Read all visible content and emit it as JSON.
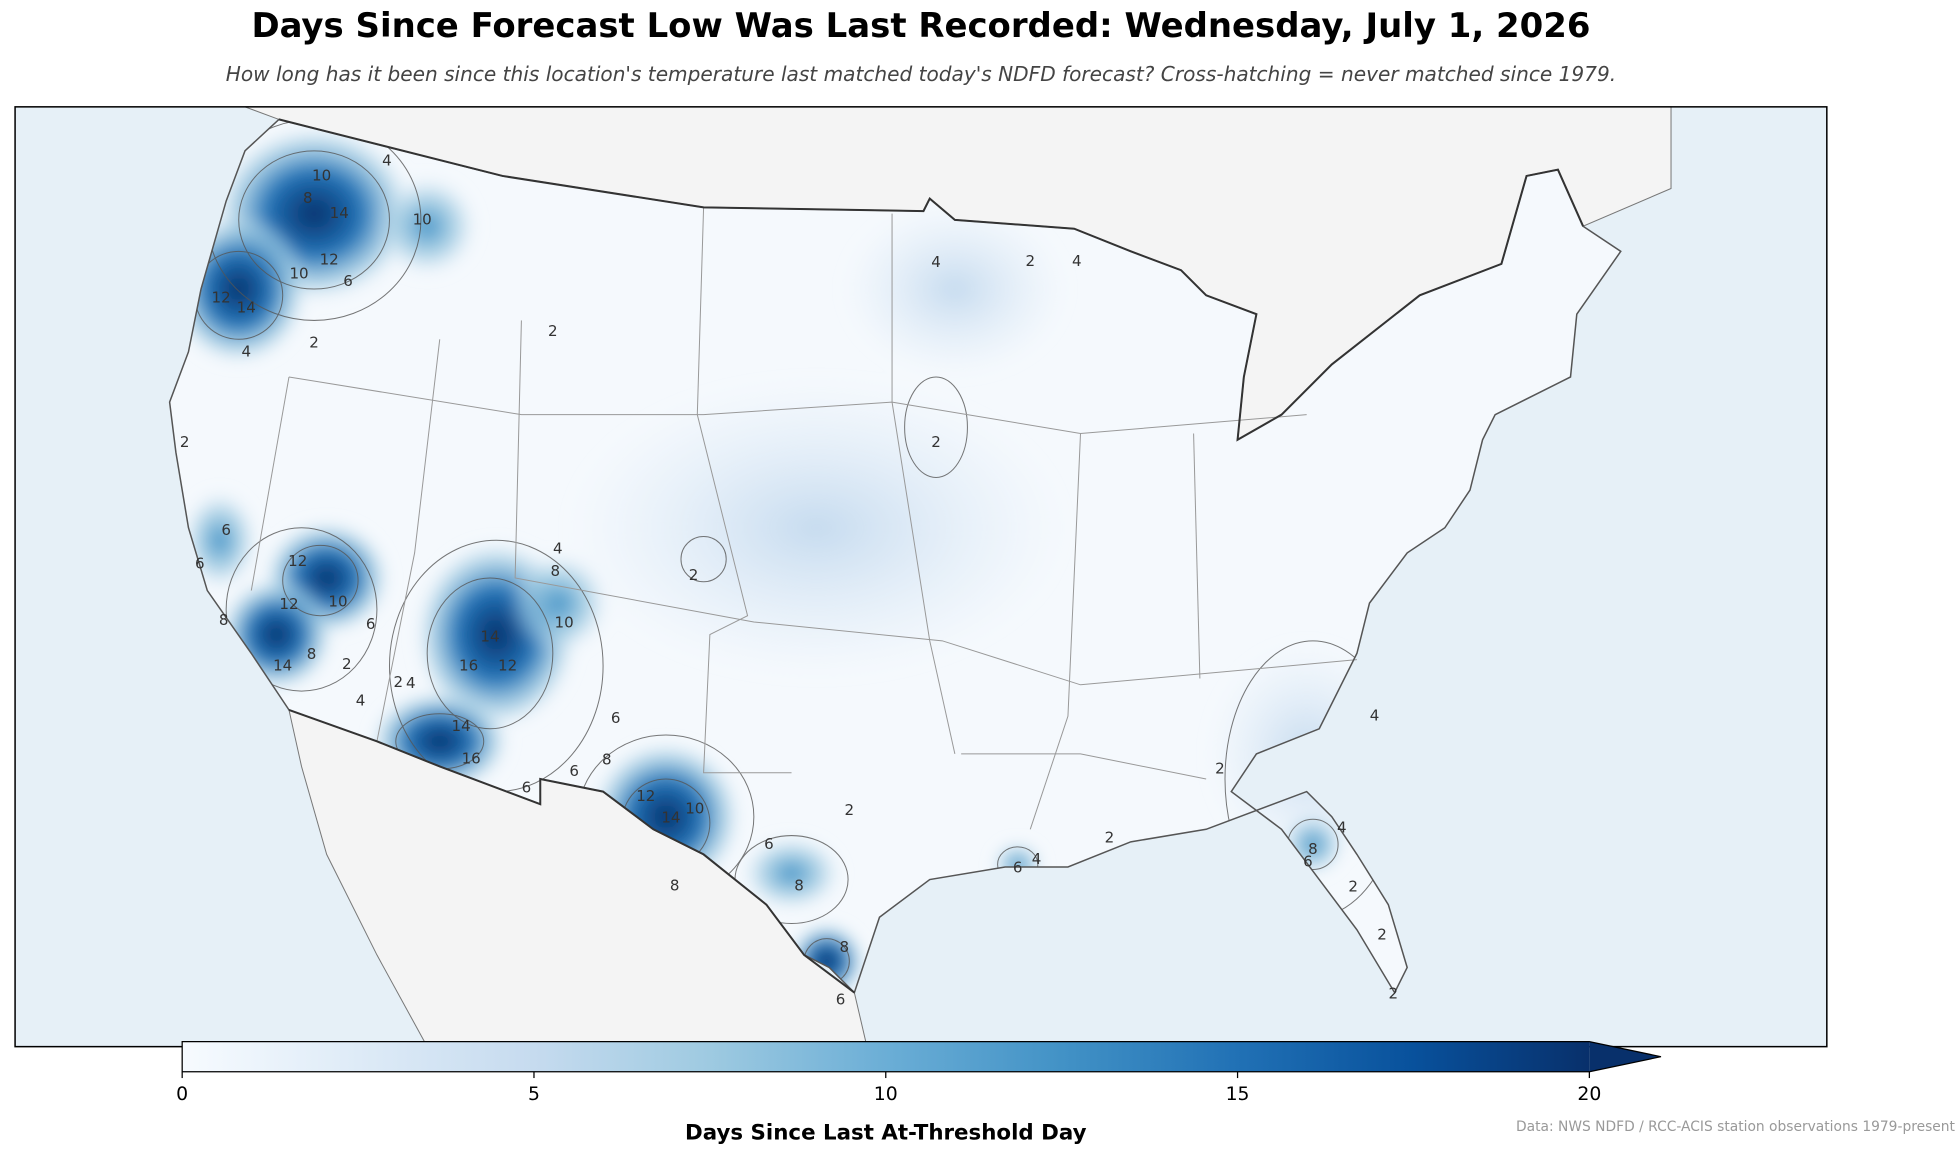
{
  "title": "Days Since Forecast Low Was Last Recorded: Wednesday, July 1, 2026",
  "subtitle": "How long has it been since this location's temperature last matched today's NDFD forecast? Cross-hatching = never matched since 1979.",
  "colorbar": {
    "label": "Days Since Last At-Threshold Day",
    "clim": [
      0,
      20
    ],
    "ticks": [
      0,
      5,
      10,
      15,
      20
    ],
    "extend": "max",
    "colors": [
      "#f7fbff",
      "#deebf7",
      "#c6dbef",
      "#9ecae1",
      "#6baed6",
      "#4292c6",
      "#2171b5",
      "#08519c",
      "#08306b"
    ]
  },
  "source": "Data: NWS NDFD / RCC-ACIS station observations 1979-present",
  "contour_labels": [
    12,
    10,
    6,
    2,
    4,
    14,
    12,
    10,
    14,
    8,
    10,
    4,
    2,
    4,
    2,
    4,
    2,
    2,
    10,
    14,
    12,
    16,
    14,
    16,
    6,
    8,
    6,
    6,
    12,
    14,
    10,
    8,
    2,
    6,
    8,
    8,
    6,
    4,
    6,
    2,
    8,
    6,
    4,
    2,
    2,
    2,
    4,
    2,
    12,
    10,
    6,
    8,
    2,
    4,
    2,
    4,
    4,
    8,
    6,
    6,
    8,
    2,
    12,
    14
  ]
}
